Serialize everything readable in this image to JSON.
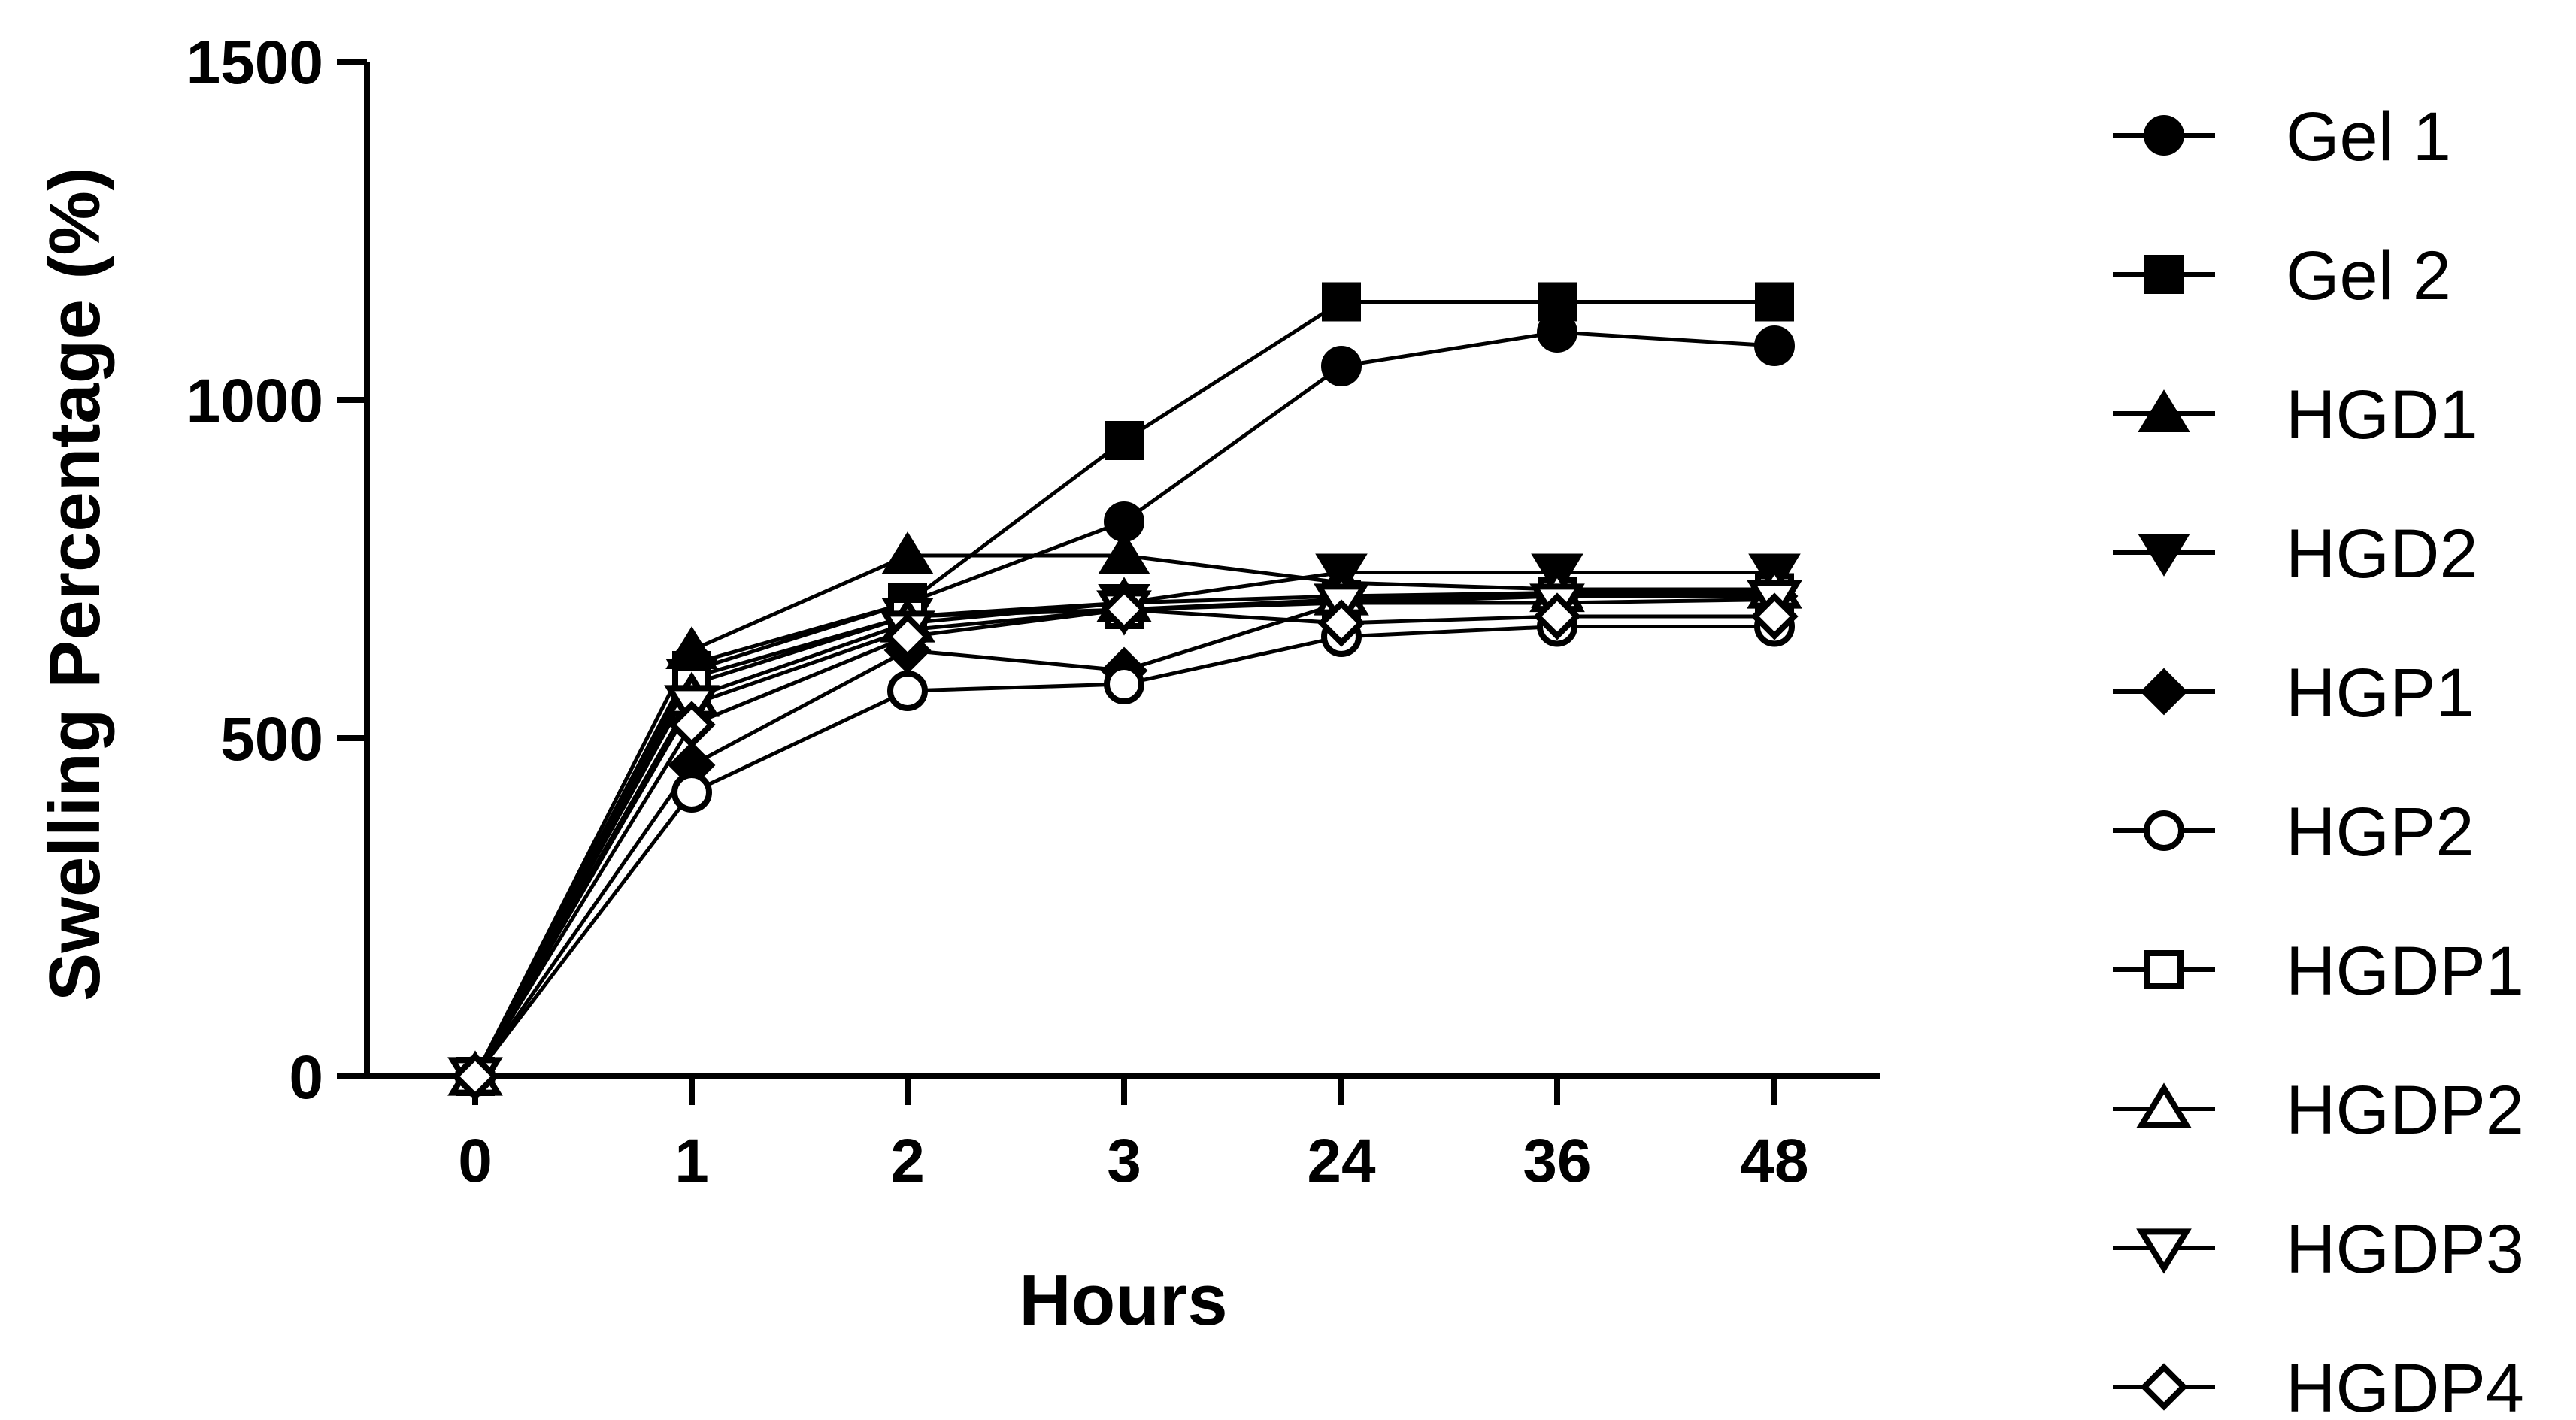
{
  "chart_data": {
    "type": "line",
    "title": "",
    "xlabel": "Hours",
    "ylabel": "Swelling Percentage (%)",
    "categories": [
      "0",
      "1",
      "2",
      "3",
      "24",
      "36",
      "48"
    ],
    "ylim": [
      0,
      1500
    ],
    "yticks": [
      "0",
      "500",
      "1000",
      "1500"
    ],
    "grid": false,
    "legend_position": "right",
    "series": [
      {
        "name": "Gel 1",
        "marker": "circle-filled",
        "values": [
          0,
          610,
          700,
          820,
          1050,
          1100,
          1080
        ]
      },
      {
        "name": "Gel 2",
        "marker": "square-filled",
        "values": [
          0,
          600,
          700,
          940,
          1145,
          1145,
          1145
        ]
      },
      {
        "name": "HGD1",
        "marker": "triangle-up-filled",
        "values": [
          0,
          630,
          770,
          770,
          730,
          720,
          720
        ]
      },
      {
        "name": "HGD2",
        "marker": "triangle-down-filled",
        "values": [
          0,
          590,
          680,
          700,
          745,
          745,
          745
        ]
      },
      {
        "name": "HGP1",
        "marker": "diamond-filled",
        "values": [
          0,
          460,
          630,
          600,
          700,
          710,
          710
        ]
      },
      {
        "name": "HGP2",
        "marker": "circle-open",
        "values": [
          0,
          420,
          570,
          580,
          650,
          665,
          665
        ]
      },
      {
        "name": "HGDP1",
        "marker": "square-open",
        "values": [
          0,
          580,
          680,
          690,
          705,
          710,
          715
        ]
      },
      {
        "name": "HGDP2",
        "marker": "triangle-up-open",
        "values": [
          0,
          560,
          670,
          700,
          710,
          715,
          720
        ]
      },
      {
        "name": "HGDP3",
        "marker": "triangle-down-open",
        "values": [
          0,
          550,
          660,
          690,
          700,
          700,
          705
        ]
      },
      {
        "name": "HGDP4",
        "marker": "diamond-open",
        "values": [
          0,
          520,
          650,
          690,
          670,
          680,
          680
        ]
      }
    ]
  }
}
